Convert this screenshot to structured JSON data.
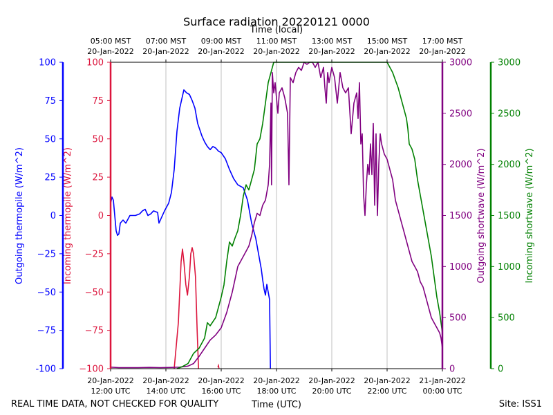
{
  "title": "Surface radiation 20220121 0000",
  "footer": {
    "left_note": "REAL TIME DATA, NOT CHECKED FOR QUALITY",
    "site": "Site: ISS1"
  },
  "chart_data": {
    "type": "line",
    "title": "Surface radiation 20220121 0000",
    "x_bottom": {
      "label": "Time (UTC)",
      "range_hours_utc": [
        12,
        24
      ],
      "ticks": [
        {
          "h": 12,
          "l1": "20-Jan-2022",
          "l2": "12:00 UTC"
        },
        {
          "h": 14,
          "l1": "20-Jan-2022",
          "l2": "14:00 UTC"
        },
        {
          "h": 16,
          "l1": "20-Jan-2022",
          "l2": "16:00 UTC"
        },
        {
          "h": 18,
          "l1": "20-Jan-2022",
          "l2": "18:00 UTC"
        },
        {
          "h": 20,
          "l1": "20-Jan-2022",
          "l2": "20:00 UTC"
        },
        {
          "h": 22,
          "l1": "20-Jan-2022",
          "l2": "22:00 UTC"
        },
        {
          "h": 24,
          "l1": "21-Jan-2022",
          "l2": "00:00 UTC"
        }
      ]
    },
    "x_top": {
      "label": "Time (local)",
      "ticks": [
        {
          "h": 12,
          "l1": "05:00 MST",
          "l2": "20-Jan-2022"
        },
        {
          "h": 14,
          "l1": "07:00 MST",
          "l2": "20-Jan-2022"
        },
        {
          "h": 16,
          "l1": "09:00 MST",
          "l2": "20-Jan-2022"
        },
        {
          "h": 18,
          "l1": "11:00 MST",
          "l2": "20-Jan-2022"
        },
        {
          "h": 20,
          "l1": "13:00 MST",
          "l2": "20-Jan-2022"
        },
        {
          "h": 22,
          "l1": "15:00 MST",
          "l2": "20-Jan-2022"
        },
        {
          "h": 24,
          "l1": "17:00 MST",
          "l2": "20-Jan-2022"
        }
      ]
    },
    "grid": "vertical",
    "axes": [
      {
        "id": "out_thermo",
        "label": "Outgoing thermopile (W/m^2)",
        "color": "#0000ff",
        "ylim": [
          -100,
          100
        ],
        "ticks": [
          "-100",
          "−75",
          "−50",
          "−25",
          "0",
          "25",
          "50",
          "75",
          "100"
        ]
      },
      {
        "id": "in_thermo",
        "label": "Incoming thermopile (W/m^2)",
        "color": "#dc143c",
        "ylim": [
          -100,
          100
        ],
        "ticks": [
          "−100",
          "−75",
          "−50",
          "−25",
          "0",
          "25",
          "50",
          "75",
          "100"
        ]
      },
      {
        "id": "out_sw",
        "label": "Outgoing shortwave (W/m^2)",
        "color": "#800080",
        "ylim": [
          0,
          3000
        ],
        "ticks": [
          "0",
          "500",
          "1000",
          "1500",
          "2000",
          "2500",
          "3000"
        ]
      },
      {
        "id": "in_sw",
        "label": "Incoming shortwave (W/m^2)",
        "color": "#008000",
        "ylim": [
          0,
          3000
        ],
        "ticks": [
          "0",
          "500",
          "1000",
          "1500",
          "2000",
          "2500",
          "3000"
        ]
      }
    ],
    "series": [
      {
        "axis": "out_thermo",
        "color": "#0000ff",
        "points": [
          [
            12.0,
            8
          ],
          [
            12.05,
            12
          ],
          [
            12.1,
            10
          ],
          [
            12.15,
            0
          ],
          [
            12.2,
            -10
          ],
          [
            12.25,
            -13
          ],
          [
            12.3,
            -12
          ],
          [
            12.35,
            -5
          ],
          [
            12.45,
            -3
          ],
          [
            12.55,
            -5
          ],
          [
            12.7,
            0
          ],
          [
            12.9,
            0
          ],
          [
            13.05,
            1
          ],
          [
            13.15,
            3
          ],
          [
            13.25,
            4
          ],
          [
            13.35,
            0
          ],
          [
            13.45,
            1
          ],
          [
            13.55,
            3
          ],
          [
            13.7,
            2
          ],
          [
            13.75,
            -5
          ],
          [
            13.85,
            -1
          ],
          [
            13.95,
            3
          ],
          [
            14.1,
            8
          ],
          [
            14.2,
            15
          ],
          [
            14.3,
            30
          ],
          [
            14.4,
            55
          ],
          [
            14.5,
            70
          ],
          [
            14.6,
            78
          ],
          [
            14.65,
            82
          ],
          [
            14.75,
            80
          ],
          [
            14.85,
            79
          ],
          [
            14.95,
            75
          ],
          [
            15.05,
            70
          ],
          [
            15.15,
            60
          ],
          [
            15.3,
            52
          ],
          [
            15.4,
            48
          ],
          [
            15.5,
            45
          ],
          [
            15.6,
            43
          ],
          [
            15.7,
            45
          ],
          [
            15.8,
            44
          ],
          [
            15.9,
            42
          ],
          [
            16.0,
            41
          ],
          [
            16.15,
            37
          ],
          [
            16.3,
            30
          ],
          [
            16.45,
            24
          ],
          [
            16.6,
            20
          ],
          [
            16.8,
            18
          ],
          [
            16.95,
            10
          ],
          [
            17.1,
            -5
          ],
          [
            17.25,
            -15
          ],
          [
            17.35,
            -25
          ],
          [
            17.45,
            -35
          ],
          [
            17.5,
            -42
          ],
          [
            17.55,
            -48
          ],
          [
            17.6,
            -52
          ],
          [
            17.65,
            -45
          ],
          [
            17.7,
            -50
          ],
          [
            17.75,
            -55
          ],
          [
            17.78,
            -100
          ]
        ]
      },
      {
        "axis": "in_thermo",
        "color": "#dc143c",
        "points": [
          [
            14.3,
            -100
          ],
          [
            14.45,
            -70
          ],
          [
            14.55,
            -30
          ],
          [
            14.6,
            -22
          ],
          [
            14.65,
            -30
          ],
          [
            14.72,
            -45
          ],
          [
            14.78,
            -52
          ],
          [
            14.85,
            -40
          ],
          [
            14.9,
            -25
          ],
          [
            14.95,
            -21
          ],
          [
            15.0,
            -25
          ],
          [
            15.07,
            -40
          ],
          [
            15.13,
            -75
          ],
          [
            15.18,
            -100
          ]
        ],
        "extra_points": [
          [
            15.88,
            -99
          ],
          [
            15.9,
            -98
          ],
          [
            15.92,
            -100
          ]
        ]
      },
      {
        "axis": "out_sw",
        "color": "#800080",
        "points": [
          [
            12.0,
            15
          ],
          [
            12.3,
            10
          ],
          [
            12.6,
            10
          ],
          [
            13.0,
            10
          ],
          [
            13.4,
            12
          ],
          [
            13.8,
            10
          ],
          [
            14.2,
            12
          ],
          [
            14.5,
            15
          ],
          [
            14.8,
            25
          ],
          [
            15.0,
            50
          ],
          [
            15.2,
            120
          ],
          [
            15.4,
            200
          ],
          [
            15.6,
            280
          ],
          [
            15.8,
            330
          ],
          [
            16.0,
            400
          ],
          [
            16.2,
            550
          ],
          [
            16.4,
            750
          ],
          [
            16.6,
            1000
          ],
          [
            16.8,
            1100
          ],
          [
            16.9,
            1150
          ],
          [
            17.0,
            1200
          ],
          [
            17.1,
            1300
          ],
          [
            17.2,
            1430
          ],
          [
            17.3,
            1520
          ],
          [
            17.4,
            1500
          ],
          [
            17.5,
            1600
          ],
          [
            17.6,
            1650
          ],
          [
            17.7,
            1800
          ],
          [
            17.75,
            2000
          ],
          [
            17.8,
            2600
          ],
          [
            17.82,
            1800
          ],
          [
            17.85,
            2900
          ],
          [
            17.9,
            2700
          ],
          [
            17.95,
            2800
          ],
          [
            18.0,
            2650
          ],
          [
            18.05,
            2500
          ],
          [
            18.1,
            2700
          ],
          [
            18.2,
            2750
          ],
          [
            18.3,
            2650
          ],
          [
            18.4,
            2500
          ],
          [
            18.45,
            1800
          ],
          [
            18.5,
            2850
          ],
          [
            18.6,
            2800
          ],
          [
            18.7,
            2900
          ],
          [
            18.8,
            2950
          ],
          [
            18.9,
            2920
          ],
          [
            19.0,
            3000
          ],
          [
            19.1,
            2980
          ],
          [
            19.2,
            3000
          ],
          [
            19.3,
            3000
          ],
          [
            19.4,
            2950
          ],
          [
            19.5,
            3000
          ],
          [
            19.6,
            2850
          ],
          [
            19.7,
            2950
          ],
          [
            19.75,
            2750
          ],
          [
            19.8,
            2600
          ],
          [
            19.85,
            2900
          ],
          [
            19.9,
            2800
          ],
          [
            20.0,
            2950
          ],
          [
            20.1,
            2850
          ],
          [
            20.2,
            2600
          ],
          [
            20.3,
            2900
          ],
          [
            20.4,
            2750
          ],
          [
            20.5,
            2700
          ],
          [
            20.6,
            2750
          ],
          [
            20.7,
            2300
          ],
          [
            20.8,
            2600
          ],
          [
            20.9,
            2700
          ],
          [
            20.95,
            2450
          ],
          [
            21.0,
            2800
          ],
          [
            21.05,
            2200
          ],
          [
            21.1,
            2300
          ],
          [
            21.15,
            1700
          ],
          [
            21.2,
            1500
          ],
          [
            21.25,
            1800
          ],
          [
            21.3,
            2000
          ],
          [
            21.35,
            1900
          ],
          [
            21.4,
            2200
          ],
          [
            21.45,
            1900
          ],
          [
            21.5,
            2400
          ],
          [
            21.55,
            1600
          ],
          [
            21.6,
            2300
          ],
          [
            21.65,
            1500
          ],
          [
            21.7,
            2000
          ],
          [
            21.75,
            2300
          ],
          [
            21.8,
            2200
          ],
          [
            21.9,
            2100
          ],
          [
            22.0,
            2050
          ],
          [
            22.1,
            1950
          ],
          [
            22.2,
            1850
          ],
          [
            22.3,
            1650
          ],
          [
            22.4,
            1550
          ],
          [
            22.5,
            1450
          ],
          [
            22.6,
            1350
          ],
          [
            22.7,
            1250
          ],
          [
            22.8,
            1150
          ],
          [
            22.9,
            1050
          ],
          [
            23.0,
            1000
          ],
          [
            23.1,
            950
          ],
          [
            23.2,
            850
          ],
          [
            23.3,
            800
          ],
          [
            23.4,
            700
          ],
          [
            23.5,
            600
          ],
          [
            23.6,
            500
          ],
          [
            23.7,
            450
          ],
          [
            23.8,
            400
          ],
          [
            23.9,
            350
          ],
          [
            23.95,
            300
          ],
          [
            24.0,
            200
          ]
        ]
      },
      {
        "axis": "in_sw",
        "color": "#008000",
        "points": [
          [
            14.4,
            0
          ],
          [
            14.6,
            20
          ],
          [
            14.8,
            50
          ],
          [
            15.0,
            150
          ],
          [
            15.2,
            200
          ],
          [
            15.4,
            300
          ],
          [
            15.5,
            450
          ],
          [
            15.6,
            420
          ],
          [
            15.8,
            500
          ],
          [
            16.0,
            700
          ],
          [
            16.1,
            820
          ],
          [
            16.2,
            1050
          ],
          [
            16.3,
            1240
          ],
          [
            16.4,
            1200
          ],
          [
            16.5,
            1280
          ],
          [
            16.6,
            1350
          ],
          [
            16.7,
            1500
          ],
          [
            16.8,
            1690
          ],
          [
            16.9,
            1800
          ],
          [
            17.0,
            1750
          ],
          [
            17.1,
            1850
          ],
          [
            17.2,
            1950
          ],
          [
            17.3,
            2200
          ],
          [
            17.4,
            2250
          ],
          [
            17.5,
            2400
          ],
          [
            17.6,
            2600
          ],
          [
            17.7,
            2800
          ],
          [
            17.8,
            2900
          ],
          [
            17.9,
            3000
          ],
          [
            18.0,
            3000
          ],
          [
            18.5,
            3000
          ],
          [
            19.0,
            3000
          ],
          [
            19.5,
            3000
          ],
          [
            20.0,
            3000
          ],
          [
            20.5,
            3000
          ],
          [
            21.0,
            3000
          ],
          [
            21.5,
            3000
          ],
          [
            22.0,
            3000
          ],
          [
            22.2,
            2900
          ],
          [
            22.4,
            2750
          ],
          [
            22.5,
            2650
          ],
          [
            22.6,
            2550
          ],
          [
            22.7,
            2450
          ],
          [
            22.75,
            2350
          ],
          [
            22.8,
            2200
          ],
          [
            22.9,
            2150
          ],
          [
            23.0,
            2050
          ],
          [
            23.1,
            1850
          ],
          [
            23.2,
            1700
          ],
          [
            23.3,
            1550
          ],
          [
            23.4,
            1400
          ],
          [
            23.5,
            1250
          ],
          [
            23.6,
            1100
          ],
          [
            23.7,
            900
          ],
          [
            23.8,
            700
          ],
          [
            23.9,
            550
          ],
          [
            24.0,
            350
          ]
        ]
      }
    ]
  }
}
